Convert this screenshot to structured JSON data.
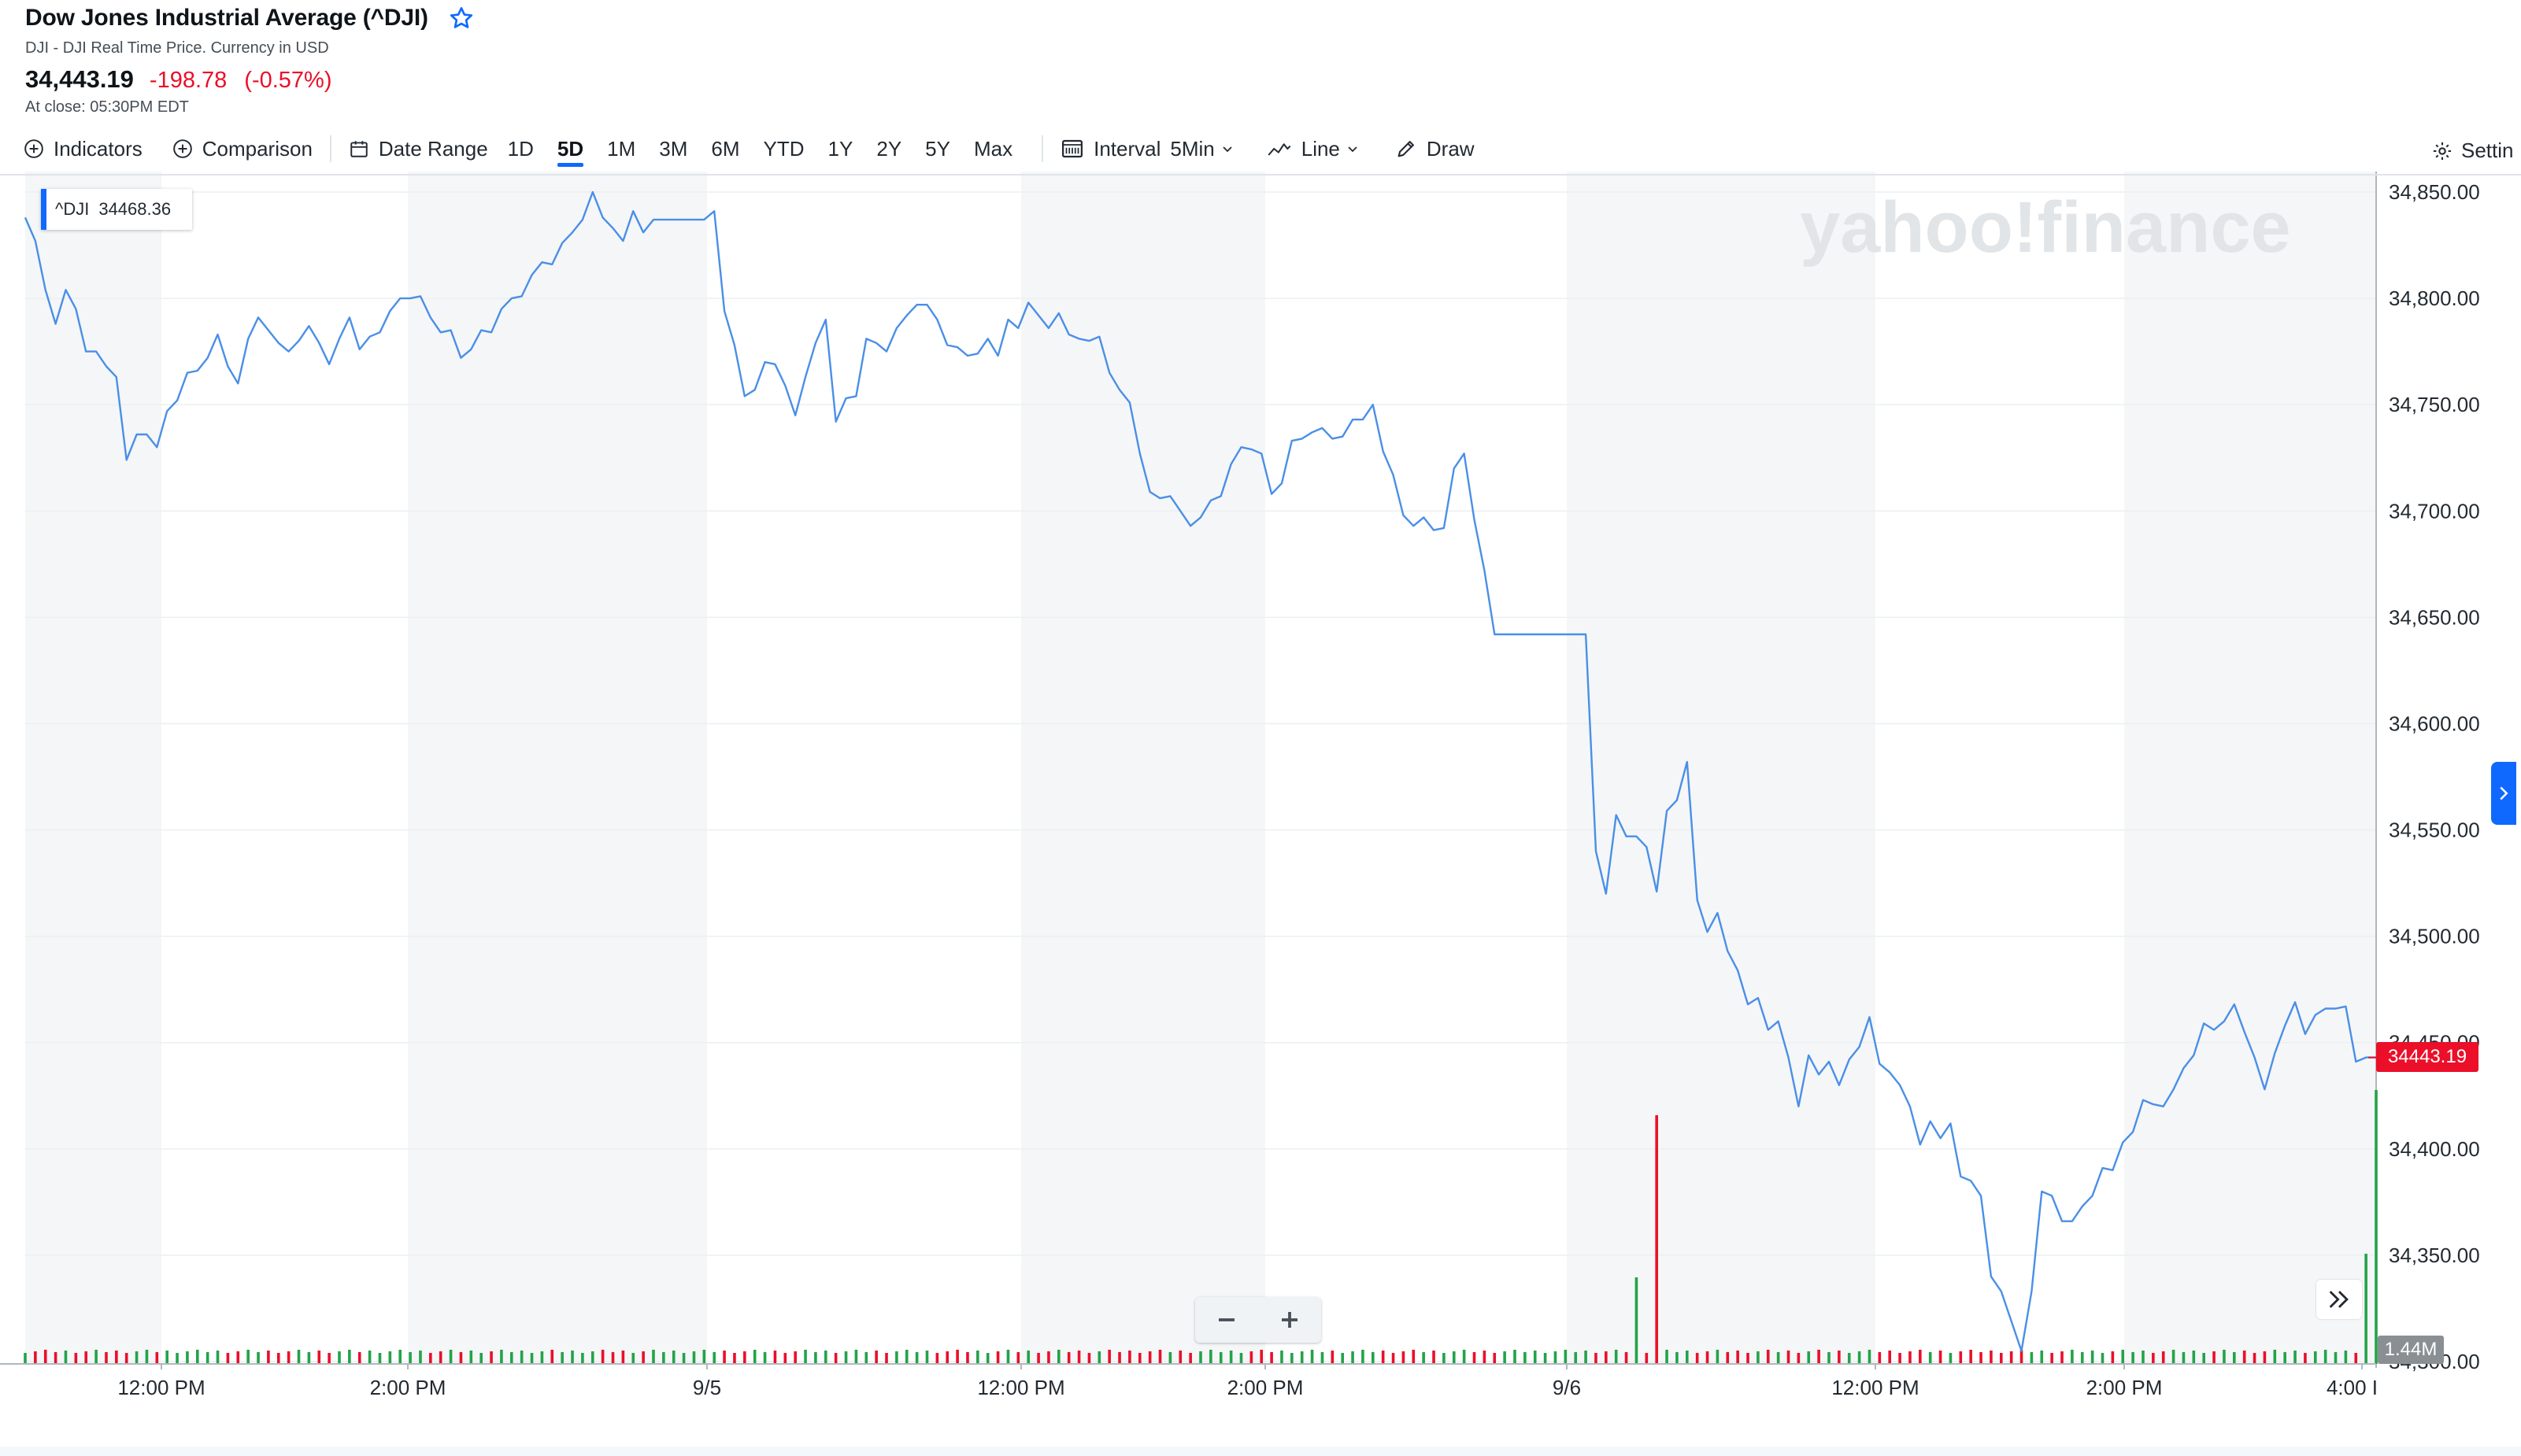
{
  "header": {
    "title": "Dow Jones Industrial Average (^DJI)",
    "subtitle": "DJI - DJI Real Time Price. Currency in USD",
    "price": "34,443.19",
    "change": "-198.78",
    "change_pct": "(-0.57%)",
    "close_time": "At close: 05:30PM EDT"
  },
  "toolbar": {
    "indicators": "Indicators",
    "comparison": "Comparison",
    "date_range": "Date Range",
    "ranges": [
      "1D",
      "5D",
      "1M",
      "3M",
      "6M",
      "YTD",
      "1Y",
      "2Y",
      "5Y",
      "Max"
    ],
    "active_range": "5D",
    "interval_label": "Interval",
    "interval_value": "5Min",
    "chart_type": "Line",
    "draw": "Draw",
    "settings": "Settin"
  },
  "watermark": "yahoo!finance",
  "legend": {
    "symbol": "^DJI",
    "value": "34468.36"
  },
  "last_price_tag": "34443.19",
  "volume_tag": "1.44M",
  "colors": {
    "line": "#4a8fe7",
    "up": "#23a348",
    "down": "#eb0f29",
    "accent": "#0f69ff"
  },
  "chart_data": {
    "type": "line",
    "series": [
      {
        "name": "^DJI",
        "values": [
          34838,
          34827,
          34804,
          34788,
          34804,
          34795,
          34775,
          34775,
          34768,
          34763,
          34724,
          34736,
          34736,
          34730,
          34747,
          34752,
          34765,
          34766,
          34772,
          34783,
          34768,
          34760,
          34781,
          34791,
          34785,
          34779,
          34775,
          34780,
          34787,
          34779,
          34769,
          34781,
          34791,
          34776,
          34782,
          34784,
          34794,
          34800,
          34800,
          34801,
          34791,
          34784,
          34785,
          34772,
          34776,
          34785,
          34784,
          34795,
          34800,
          34801,
          34811,
          34817,
          34816,
          34826,
          34831,
          34837,
          34850,
          34838,
          34833,
          34827,
          34841,
          34831,
          34837,
          34837,
          34837,
          34837,
          34837,
          34837,
          34841,
          34794,
          34778,
          34754,
          34757,
          34770,
          34769,
          34759,
          34745,
          34763,
          34779,
          34790,
          34742,
          34753,
          34754,
          34781,
          34779,
          34775,
          34786,
          34792,
          34797,
          34797,
          34790,
          34778,
          34777,
          34773,
          34774,
          34781,
          34773,
          34790,
          34786,
          34798,
          34792,
          34786,
          34793,
          34783,
          34781,
          34780,
          34782,
          34765,
          34757,
          34751,
          34727,
          34709,
          34706,
          34707,
          34700,
          34693,
          34697,
          34705,
          34707,
          34722,
          34730,
          34729,
          34727,
          34708,
          34713,
          34733,
          34734,
          34737,
          34739,
          34734,
          34735,
          34743,
          34743,
          34750,
          34728,
          34717,
          34698,
          34693,
          34697,
          34691,
          34692,
          34720,
          34727,
          34696,
          34672,
          34642,
          34642,
          34642,
          34642,
          34642,
          34642,
          34642,
          34642,
          34642,
          34642,
          34540,
          34520,
          34557,
          34547,
          34547,
          34542,
          34521,
          34559,
          34564,
          34582,
          34517,
          34502,
          34511,
          34493,
          34484,
          34468,
          34471,
          34456,
          34460,
          34443,
          34420,
          34444,
          34435,
          34441,
          34430,
          34442,
          34448,
          34462,
          34440,
          34436,
          34430,
          34420,
          34402,
          34413,
          34405,
          34412,
          34387,
          34385,
          34378,
          34340,
          34333,
          34319,
          34305,
          34333,
          34380,
          34378,
          34366,
          34366,
          34373,
          34378,
          34391,
          34390,
          34403,
          34408,
          34423,
          34421,
          34420,
          34428,
          34438,
          34444,
          34459,
          34456,
          34460,
          34468,
          34455,
          34443,
          34428,
          34445,
          34458,
          34469,
          34454,
          34463,
          34466,
          34466,
          34467,
          34441,
          34443,
          34443
        ]
      }
    ],
    "volume_bars": {
      "up_color": "#23a348",
      "down_color": "#eb0f29"
    },
    "x_tick_labels": [
      "12:00 PM",
      "2:00 PM",
      "9/5",
      "12:00 PM",
      "2:00 PM",
      "9/6",
      "12:00 PM",
      "2:00 PM",
      "4:00 I"
    ],
    "y_tick_labels": [
      "34,850.00",
      "34,800.00",
      "34,750.00",
      "34,700.00",
      "34,650.00",
      "34,600.00",
      "34,550.00",
      "34,500.00",
      "34,450.00",
      "34,400.00",
      "34,350.00",
      "34,300.00"
    ],
    "ylim": [
      34300,
      34850
    ],
    "grid": true
  }
}
